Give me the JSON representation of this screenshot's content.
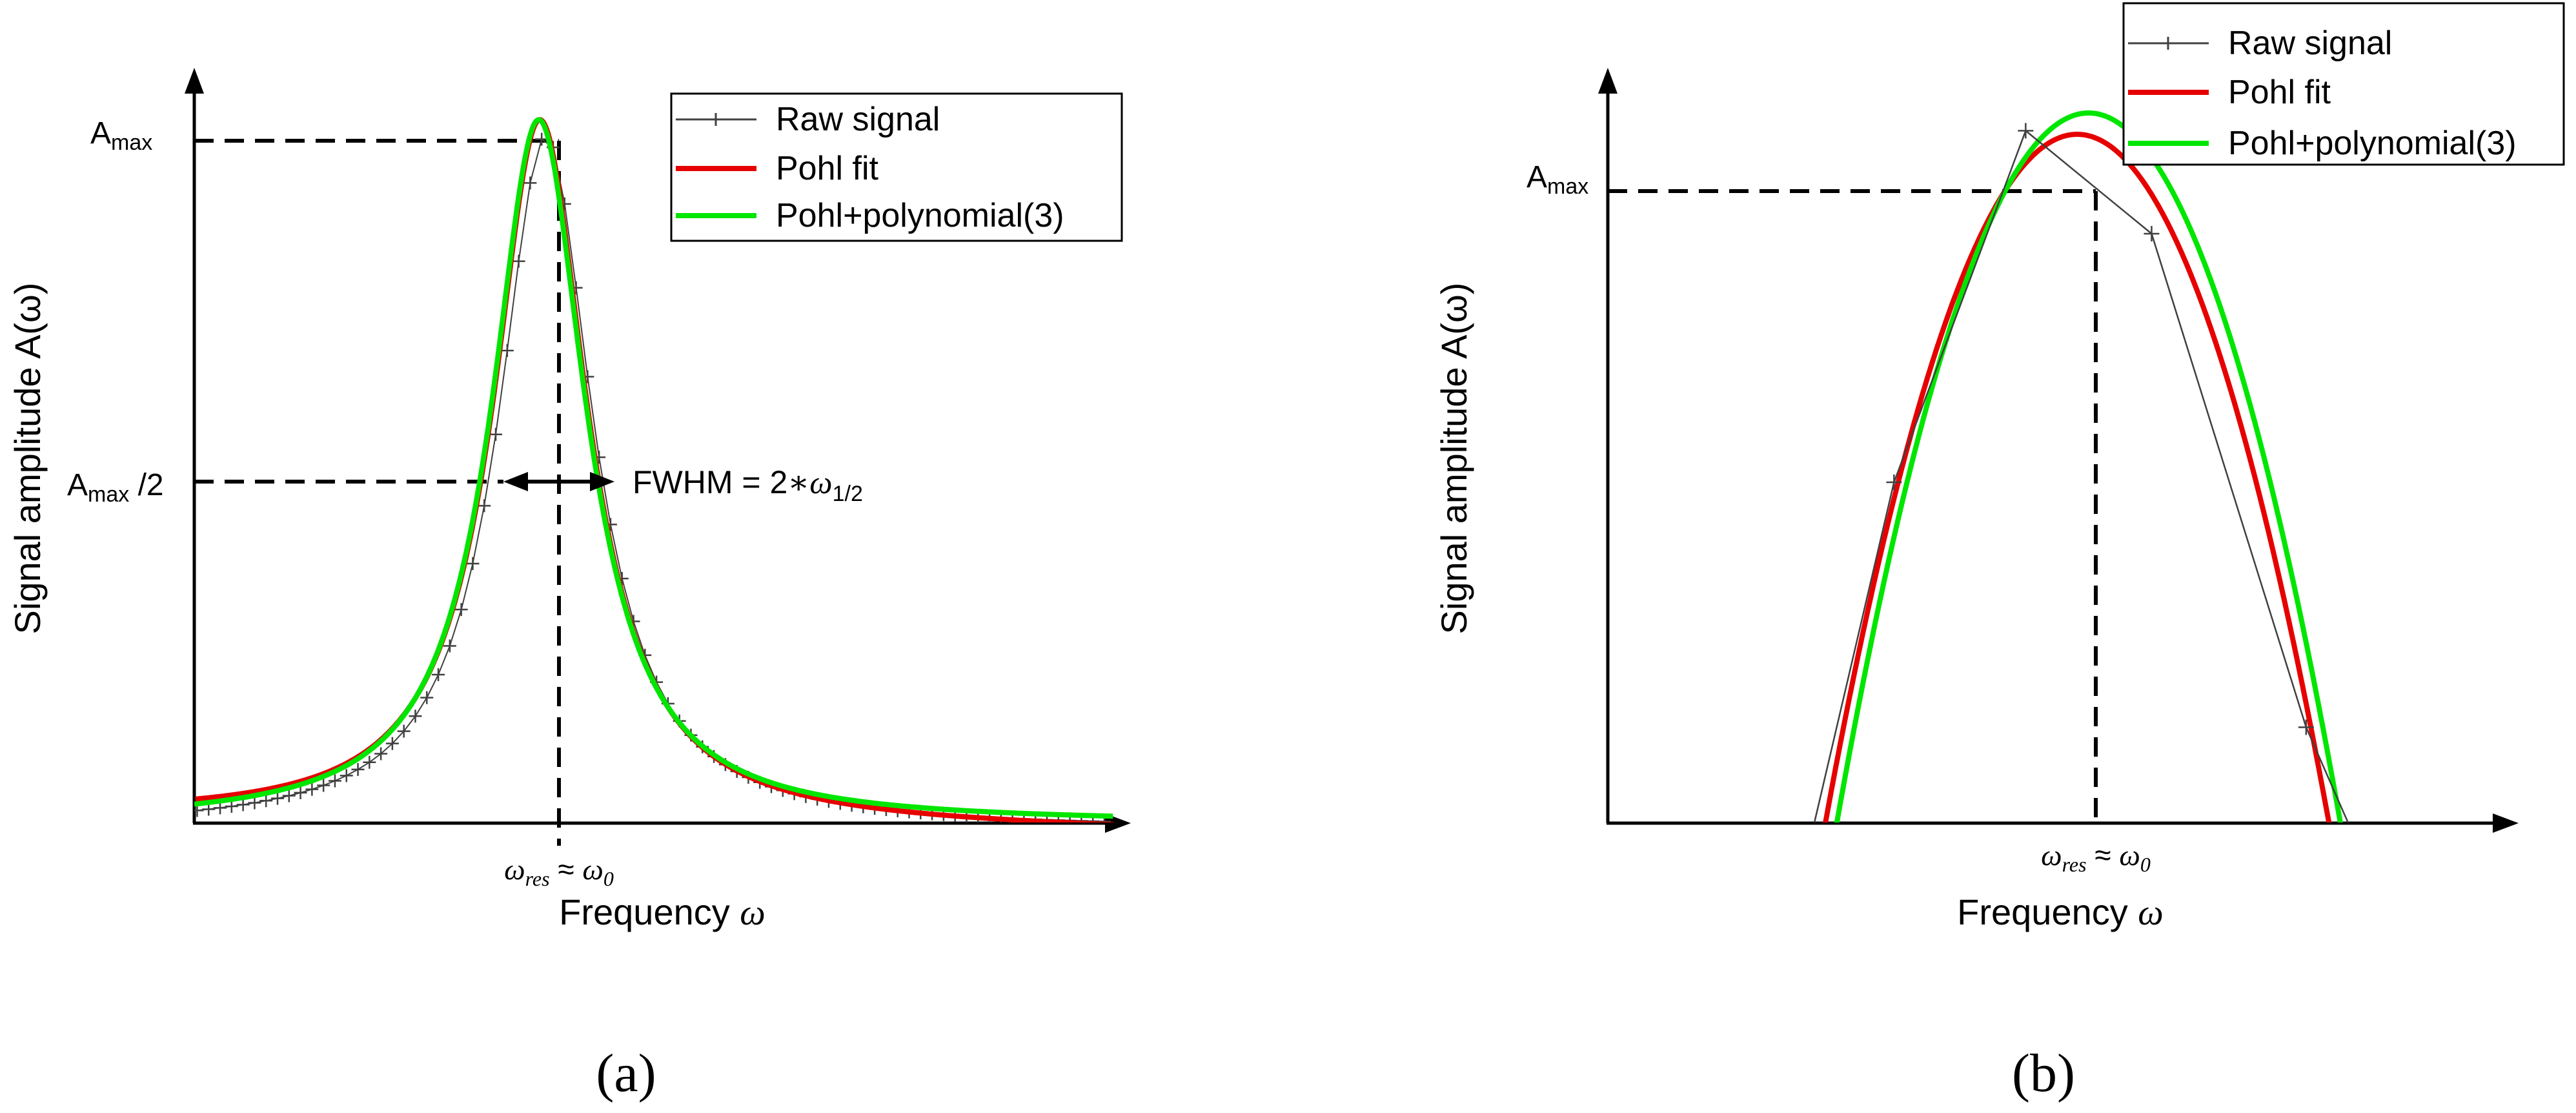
{
  "chart_data": [
    {
      "panel": "(a)",
      "type": "line",
      "xlabel": "Frequency ω",
      "ylabel": "Signal amplitude A(ω)",
      "x_tick_label": "ωres ≈ ω0",
      "y_marks": [
        "Amax",
        "Amax /2"
      ],
      "annotation": "FWHM = 2∗ω1/2",
      "legend": [
        "Raw signal",
        "Pohl fit",
        "Pohl+polynomial(3)"
      ],
      "legend_position": "top-right",
      "grid": false,
      "model": {
        "type": "lorentzian",
        "center": 0,
        "half_width": 1,
        "peak": 1
      },
      "xlim": [
        -6,
        10.3
      ],
      "ylim": [
        0,
        1.06
      ],
      "series": [
        {
          "name": "Raw signal",
          "color": "#404040",
          "marker": "+",
          "step": 0.2
        },
        {
          "name": "Pohl fit",
          "color": "#e60000"
        },
        {
          "name": "Pohl+polynomial(3)",
          "color": "#00e600"
        }
      ]
    },
    {
      "panel": "(b)",
      "type": "line",
      "xlabel": "Frequency ω",
      "ylabel": "Signal amplitude A(ω)",
      "x_tick_label": "ωres ≈ ω0",
      "y_marks": [
        "Amax"
      ],
      "legend": [
        "Raw signal",
        "Pohl fit",
        "Pohl+polynomial(3)"
      ],
      "legend_position": "top-right",
      "grid": false,
      "xlim": [
        -4.2,
        3.75
      ],
      "ylim": [
        0,
        1.05
      ],
      "series": [
        {
          "name": "Raw signal",
          "color": "#404040",
          "marker": "+",
          "x": [
            -2.6,
            -1.7,
            -0.55,
            0.55,
            1.9,
            2.65
          ],
          "y": [
            -0.14,
            0.48,
            0.975,
            0.83,
            0.135,
            -0.14
          ]
        },
        {
          "name": "Pohl fit",
          "color": "#e60000",
          "center": -0.1,
          "peak": 0.97,
          "half_width": 2.2
        },
        {
          "name": "Pohl+polynomial(3)",
          "color": "#00e600",
          "center": 0,
          "peak": 1.0,
          "half_width": 2.2
        }
      ]
    }
  ],
  "panel_labels": [
    "(a)",
    "(b)"
  ],
  "text": {
    "xlabel": "Frequency ",
    "omega": "ω",
    "ylabel": "Signal amplitude A(ω)",
    "amax_base": "A",
    "amax_sub": "max",
    "half_suffix": " /2",
    "tick_omega": "ω",
    "tick_res": "res",
    "tick_approx": " ≈ ",
    "tick_zero_base": "ω",
    "tick_zero_sub": "0",
    "fwhm_prefix": "FWHM = 2",
    "fwhm_star": "∗",
    "fwhm_omega": "ω",
    "fwhm_sub": "1/2",
    "legend_raw": "Raw signal",
    "legend_pohl": "Pohl fit",
    "legend_poly": "Pohl+polynomial(3)"
  },
  "colors": {
    "axis": "#000000",
    "raw": "#404040",
    "pohl": "#e60000",
    "poly": "#00e600"
  }
}
